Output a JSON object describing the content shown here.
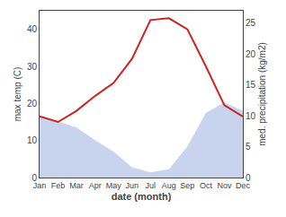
{
  "chart_data": {
    "type": "line",
    "categories": [
      "Jan",
      "Feb",
      "Mar",
      "Apr",
      "May",
      "Jun",
      "Jul",
      "Aug",
      "Sep",
      "Oct",
      "Nov",
      "Dec"
    ],
    "series": [
      {
        "type": "area",
        "color": "#c8d4ee",
        "axis": "y2",
        "values": [
          9.7875,
          9.1125,
          8.1,
          6.075,
          4.21875,
          1.6875,
          0.84375,
          1.35,
          5.0625,
          10.4625,
          12.15,
          10.8
        ]
      },
      {
        "type": "line",
        "color": "#cc2222",
        "values": [
          16.5,
          15.0,
          18.0,
          22.0,
          25.5,
          32.0,
          42.5,
          43.0,
          40.0,
          30.0,
          19.5,
          16.5
        ]
      }
    ],
    "xlabel": "date (month)",
    "ylabel": "max temp (C)",
    "y2label": "med. precipitation (kg/m2)",
    "ylim": [
      0,
      45
    ],
    "yticks": [
      0,
      10,
      20,
      30,
      40
    ],
    "y2lim": [
      0,
      27
    ],
    "y2ticks": [
      0,
      5,
      10,
      15,
      20,
      25
    ],
    "grid": false
  }
}
